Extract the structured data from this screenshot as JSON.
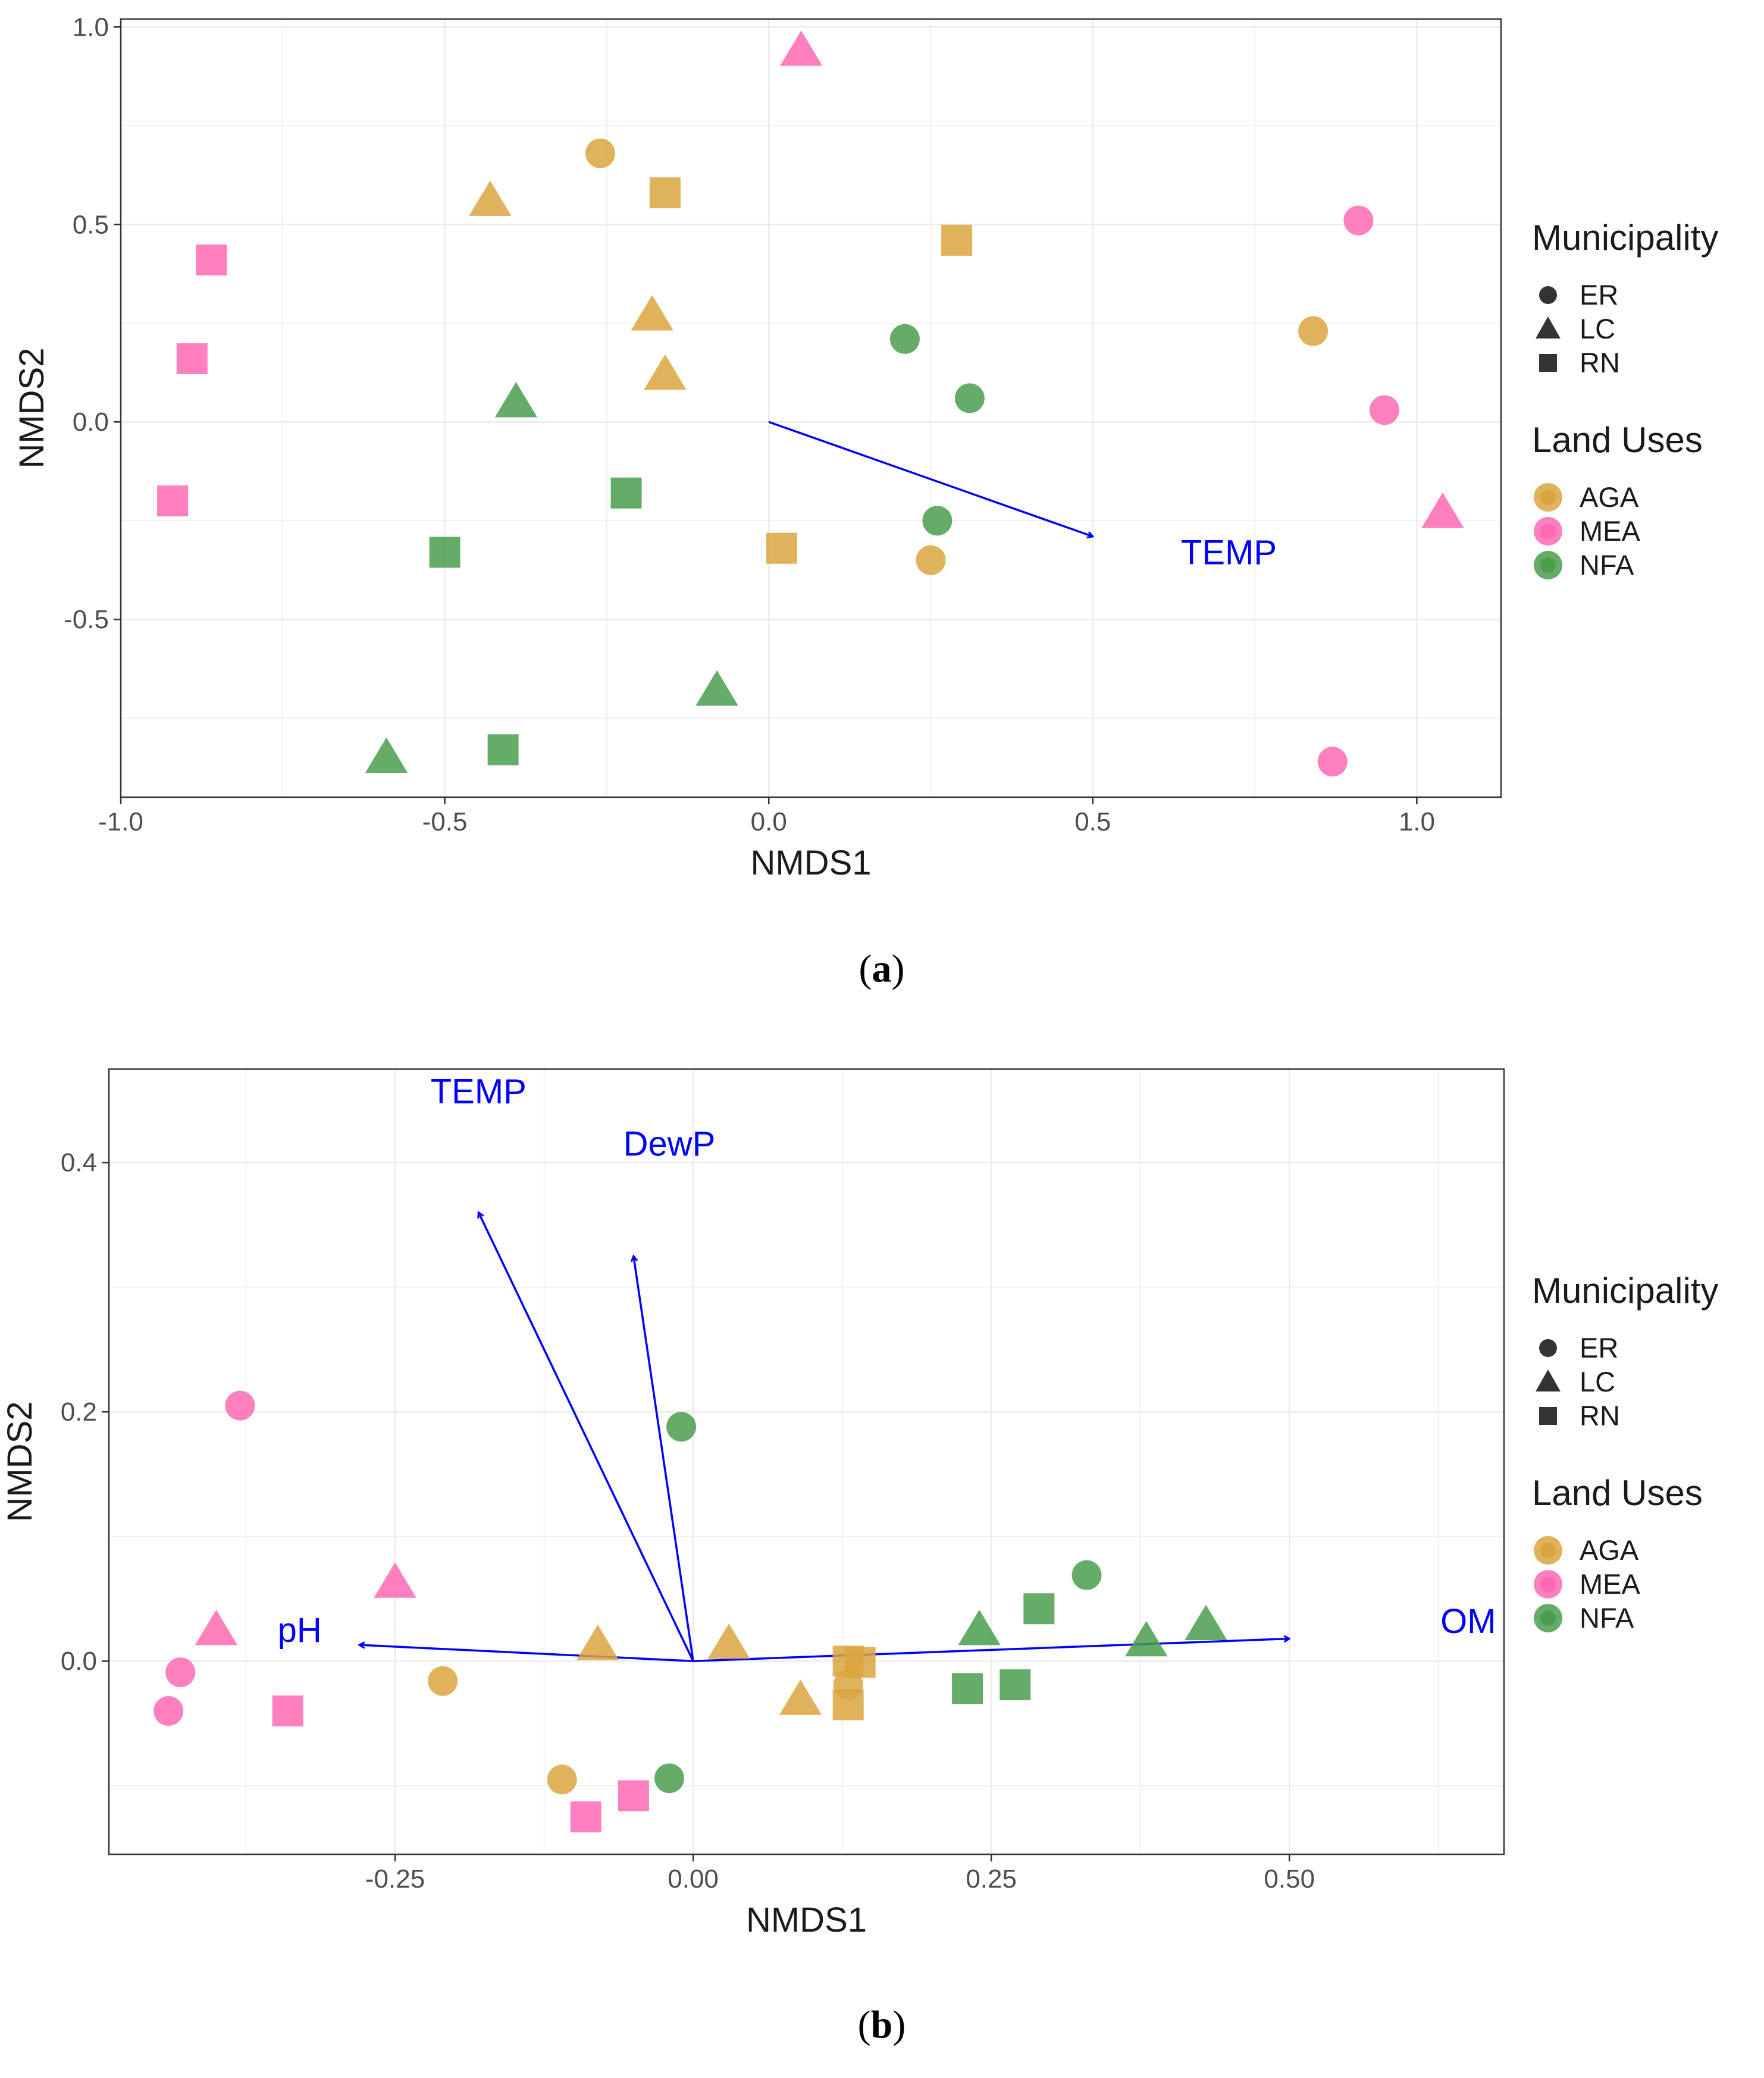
{
  "colors": {
    "AGA": "#DAA53E",
    "MEA": "#FF69B4",
    "NFA": "#4A9E4E",
    "vector": "#0000FF",
    "grid": "#EBEBEB",
    "panel_border": "#333333"
  },
  "chart_data": [
    {
      "type": "scatter",
      "caption_paren_open": "(",
      "caption": "a",
      "caption_paren_close": ")",
      "xlabel": "NMDS1",
      "ylabel": "NMDS2",
      "xlim": [
        -1.0,
        1.13
      ],
      "ylim": [
        -0.95,
        1.02
      ],
      "xticks": [
        -1.0,
        -0.5,
        0.0,
        0.5,
        1.0
      ],
      "xtick_labels": [
        "-1.0",
        "-0.5",
        "0.0",
        "0.5",
        "1.0"
      ],
      "yticks": [
        -0.5,
        0.0,
        0.5,
        1.0
      ],
      "ytick_labels": [
        "-0.5",
        "0.0",
        "0.5",
        "1.0"
      ],
      "grid": true,
      "legend_position": "right",
      "legend": {
        "shape_title": "Municipality",
        "shape_items": [
          {
            "label": "ER",
            "shape": "circle"
          },
          {
            "label": "LC",
            "shape": "triangle"
          },
          {
            "label": "RN",
            "shape": "square"
          }
        ],
        "color_title": "Land Uses",
        "color_items": [
          {
            "label": "AGA",
            "color_key": "AGA"
          },
          {
            "label": "MEA",
            "color_key": "MEA"
          },
          {
            "label": "NFA",
            "color_key": "NFA"
          }
        ]
      },
      "vectors": [
        {
          "label": "TEMP",
          "x": 0.5,
          "y": -0.29,
          "label_x": 0.71,
          "label_y": -0.33
        }
      ],
      "points": [
        {
          "x": 0.05,
          "y": 0.94,
          "municipality": "LC",
          "land_use": "MEA"
        },
        {
          "x": -0.26,
          "y": 0.68,
          "municipality": "ER",
          "land_use": "AGA"
        },
        {
          "x": -0.16,
          "y": 0.58,
          "municipality": "RN",
          "land_use": "AGA"
        },
        {
          "x": -0.43,
          "y": 0.56,
          "municipality": "LC",
          "land_use": "AGA"
        },
        {
          "x": 0.29,
          "y": 0.46,
          "municipality": "RN",
          "land_use": "AGA"
        },
        {
          "x": 0.91,
          "y": 0.51,
          "municipality": "ER",
          "land_use": "MEA"
        },
        {
          "x": -0.86,
          "y": 0.41,
          "municipality": "RN",
          "land_use": "MEA"
        },
        {
          "x": 0.84,
          "y": 0.23,
          "municipality": "ER",
          "land_use": "AGA"
        },
        {
          "x": -0.18,
          "y": 0.27,
          "municipality": "LC",
          "land_use": "AGA"
        },
        {
          "x": 0.21,
          "y": 0.21,
          "municipality": "ER",
          "land_use": "NFA"
        },
        {
          "x": -0.89,
          "y": 0.16,
          "municipality": "RN",
          "land_use": "MEA"
        },
        {
          "x": -0.16,
          "y": 0.12,
          "municipality": "LC",
          "land_use": "AGA"
        },
        {
          "x": -0.39,
          "y": 0.05,
          "municipality": "LC",
          "land_use": "NFA"
        },
        {
          "x": 0.31,
          "y": 0.06,
          "municipality": "ER",
          "land_use": "NFA"
        },
        {
          "x": 0.95,
          "y": 0.03,
          "municipality": "ER",
          "land_use": "MEA"
        },
        {
          "x": -0.92,
          "y": -0.2,
          "municipality": "RN",
          "land_use": "MEA"
        },
        {
          "x": -0.22,
          "y": -0.18,
          "municipality": "RN",
          "land_use": "NFA"
        },
        {
          "x": 1.04,
          "y": -0.23,
          "municipality": "LC",
          "land_use": "MEA"
        },
        {
          "x": 0.26,
          "y": -0.25,
          "municipality": "ER",
          "land_use": "NFA"
        },
        {
          "x": -0.5,
          "y": -0.33,
          "municipality": "RN",
          "land_use": "NFA"
        },
        {
          "x": 0.02,
          "y": -0.32,
          "municipality": "RN",
          "land_use": "AGA"
        },
        {
          "x": 0.25,
          "y": -0.35,
          "municipality": "ER",
          "land_use": "AGA"
        },
        {
          "x": -0.08,
          "y": -0.68,
          "municipality": "LC",
          "land_use": "NFA"
        },
        {
          "x": -0.41,
          "y": -0.83,
          "municipality": "RN",
          "land_use": "NFA"
        },
        {
          "x": -0.59,
          "y": -0.85,
          "municipality": "LC",
          "land_use": "NFA"
        },
        {
          "x": 0.87,
          "y": -0.86,
          "municipality": "ER",
          "land_use": "MEA"
        }
      ]
    },
    {
      "type": "scatter",
      "caption_paren_open": "(",
      "caption": "b",
      "caption_paren_close": ")",
      "xlabel": "NMDS1",
      "ylabel": "NMDS2",
      "xlim": [
        -0.49,
        0.68
      ],
      "ylim": [
        -0.155,
        0.475
      ],
      "xticks": [
        -0.25,
        0.0,
        0.25,
        0.5
      ],
      "xtick_labels": [
        "-0.25",
        "0.00",
        "0.25",
        "0.50"
      ],
      "yticks": [
        0.0,
        0.2,
        0.4
      ],
      "ytick_labels": [
        "0.0",
        "0.2",
        "0.4"
      ],
      "grid": true,
      "legend_position": "right",
      "legend": {
        "shape_title": "Municipality",
        "shape_items": [
          {
            "label": "ER",
            "shape": "circle"
          },
          {
            "label": "LC",
            "shape": "triangle"
          },
          {
            "label": "RN",
            "shape": "square"
          }
        ],
        "color_title": "Land Uses",
        "color_items": [
          {
            "label": "AGA",
            "color_key": "AGA"
          },
          {
            "label": "MEA",
            "color_key": "MEA"
          },
          {
            "label": "NFA",
            "color_key": "NFA"
          }
        ]
      },
      "vectors": [
        {
          "label": "TEMP",
          "x": -0.18,
          "y": 0.36,
          "label_x": -0.18,
          "label_y": 0.457
        },
        {
          "label": "DewP",
          "x": -0.05,
          "y": 0.325,
          "label_x": -0.02,
          "label_y": 0.415
        },
        {
          "label": "pH",
          "x": -0.28,
          "y": 0.013,
          "label_x": -0.33,
          "label_y": 0.025
        },
        {
          "label": "OM",
          "x": 0.5,
          "y": 0.018,
          "label_x": 0.65,
          "label_y": 0.032
        }
      ],
      "points": [
        {
          "x": -0.38,
          "y": 0.205,
          "municipality": "ER",
          "land_use": "MEA"
        },
        {
          "x": -0.01,
          "y": 0.188,
          "municipality": "ER",
          "land_use": "NFA"
        },
        {
          "x": 0.33,
          "y": 0.069,
          "municipality": "ER",
          "land_use": "NFA"
        },
        {
          "x": -0.25,
          "y": 0.063,
          "municipality": "LC",
          "land_use": "MEA"
        },
        {
          "x": 0.29,
          "y": 0.042,
          "municipality": "RN",
          "land_use": "NFA"
        },
        {
          "x": 0.43,
          "y": 0.029,
          "municipality": "LC",
          "land_use": "NFA"
        },
        {
          "x": 0.24,
          "y": 0.025,
          "municipality": "LC",
          "land_use": "NFA"
        },
        {
          "x": -0.4,
          "y": 0.025,
          "municipality": "LC",
          "land_use": "MEA"
        },
        {
          "x": 0.38,
          "y": 0.016,
          "municipality": "LC",
          "land_use": "NFA"
        },
        {
          "x": 0.03,
          "y": 0.014,
          "municipality": "LC",
          "land_use": "AGA"
        },
        {
          "x": -0.08,
          "y": 0.013,
          "municipality": "LC",
          "land_use": "AGA"
        },
        {
          "x": 0.13,
          "y": 0.0,
          "municipality": "RN",
          "land_use": "AGA"
        },
        {
          "x": 0.14,
          "y": -0.001,
          "municipality": "RN",
          "land_use": "AGA"
        },
        {
          "x": -0.43,
          "y": -0.009,
          "municipality": "ER",
          "land_use": "MEA"
        },
        {
          "x": -0.21,
          "y": -0.016,
          "municipality": "ER",
          "land_use": "AGA"
        },
        {
          "x": 0.13,
          "y": -0.019,
          "municipality": "ER",
          "land_use": "AGA"
        },
        {
          "x": 0.27,
          "y": -0.019,
          "municipality": "RN",
          "land_use": "NFA"
        },
        {
          "x": 0.23,
          "y": -0.022,
          "municipality": "RN",
          "land_use": "NFA"
        },
        {
          "x": 0.09,
          "y": -0.031,
          "municipality": "LC",
          "land_use": "AGA"
        },
        {
          "x": 0.13,
          "y": -0.035,
          "municipality": "RN",
          "land_use": "AGA"
        },
        {
          "x": -0.44,
          "y": -0.04,
          "municipality": "ER",
          "land_use": "MEA"
        },
        {
          "x": -0.34,
          "y": -0.04,
          "municipality": "RN",
          "land_use": "MEA"
        },
        {
          "x": -0.11,
          "y": -0.095,
          "municipality": "ER",
          "land_use": "AGA"
        },
        {
          "x": -0.02,
          "y": -0.094,
          "municipality": "ER",
          "land_use": "NFA"
        },
        {
          "x": -0.05,
          "y": -0.108,
          "municipality": "RN",
          "land_use": "MEA"
        },
        {
          "x": -0.09,
          "y": -0.125,
          "municipality": "RN",
          "land_use": "MEA"
        }
      ]
    }
  ]
}
